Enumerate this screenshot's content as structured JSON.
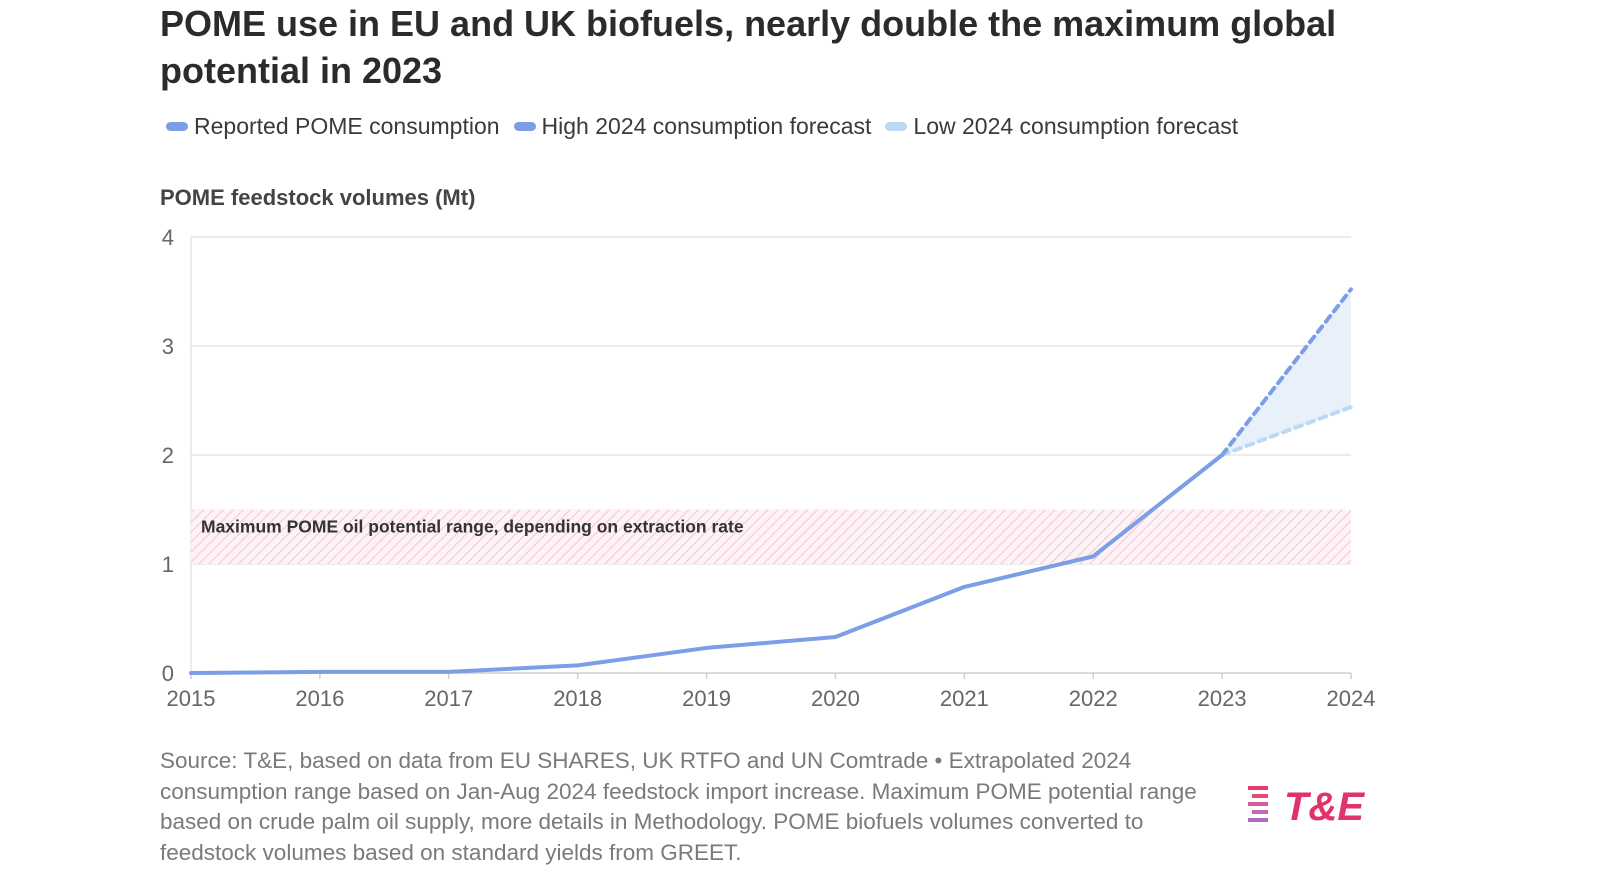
{
  "title": "POME use in EU and UK biofuels, nearly double the maximum global potential in 2023",
  "legend": [
    {
      "label": "Reported POME consumption",
      "color": "#7b9ee6"
    },
    {
      "label": "High 2024 consumption forecast",
      "color": "#7b9ee6"
    },
    {
      "label": "Low 2024 consumption forecast",
      "color": "#bcd8f2"
    }
  ],
  "source": "Source: T&E, based on data from EU SHARES, UK RTFO and UN Comtrade • Extrapolated 2024 consumption range based on Jan-Aug 2024 feedstock import increase. Maximum POME potential range based on crude palm oil supply, more details in Methodology. POME biofuels volumes converted to feedstock volumes based on standard yields from GREET.",
  "logo_text": "T&E",
  "chart_data": {
    "type": "line",
    "ylabel": "POME feedstock volumes (Mt)",
    "xlabel": "",
    "ylim": [
      0,
      4
    ],
    "yticks": [
      "0",
      "1",
      "2",
      "3",
      "4"
    ],
    "categories": [
      "2015",
      "2016",
      "2017",
      "2018",
      "2019",
      "2020",
      "2021",
      "2022",
      "2023",
      "2024"
    ],
    "grid": true,
    "legend_position": "top",
    "series": [
      {
        "name": "Reported POME consumption",
        "x": [
          "2015",
          "2016",
          "2017",
          "2018",
          "2019",
          "2020",
          "2021",
          "2022",
          "2023"
        ],
        "values": [
          0.0,
          0.01,
          0.01,
          0.07,
          0.23,
          0.33,
          0.79,
          1.07,
          2.0
        ],
        "style": "solid",
        "color": "#7b9ee6"
      },
      {
        "name": "High 2024 consumption forecast",
        "x": [
          "2023",
          "2024"
        ],
        "values": [
          2.0,
          3.52
        ],
        "style": "dashed",
        "color": "#7b9ee6"
      },
      {
        "name": "Low 2024 consumption forecast",
        "x": [
          "2023",
          "2024"
        ],
        "values": [
          2.0,
          2.44
        ],
        "style": "dashed",
        "color": "#bcd8f2"
      }
    ],
    "forecast_range_fill": "#e8f0fa",
    "annotations": [
      {
        "label": "Maximum POME oil potential range, depending on extraction rate",
        "y_range": [
          1.0,
          1.5
        ],
        "color": "#e8879e"
      }
    ]
  }
}
